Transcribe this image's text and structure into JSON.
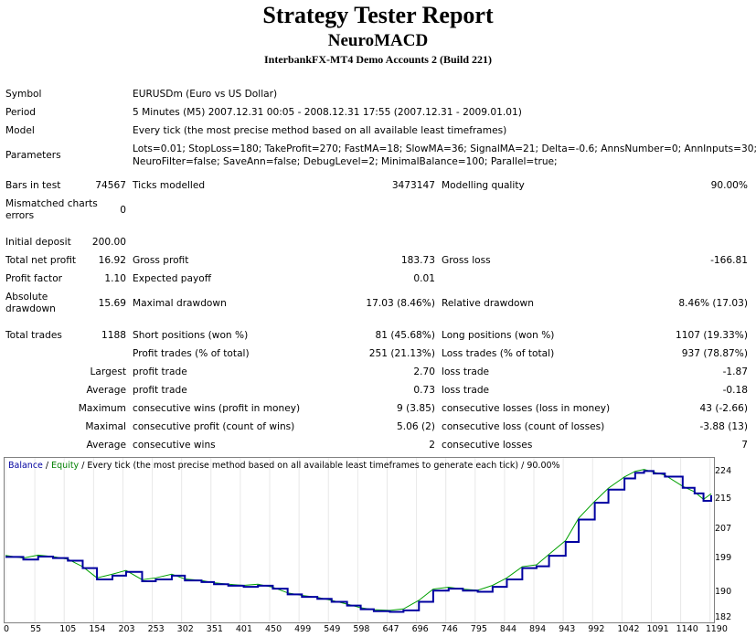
{
  "header": {
    "title": "Strategy Tester Report",
    "subtitle": "NeuroMACD",
    "server": "InterbankFX-MT4 Demo Accounts 2 (Build 221)"
  },
  "info": {
    "symbol_label": "Symbol",
    "symbol_value": "EURUSDm (Euro vs US Dollar)",
    "period_label": "Period",
    "period_value": "5 Minutes (M5) 2007.12.31 00:05 - 2008.12.31 17:55 (2007.12.31 - 2009.01.01)",
    "model_label": "Model",
    "model_value": "Every tick (the most precise method based on all available least timeframes)",
    "parameters_label": "Parameters",
    "parameters_line1": "Lots=0.01; StopLoss=180; TakeProfit=270; FastMA=18; SlowMA=36; SignalMA=21; Delta=-0.6; AnnsNumber=0; AnnInputs=30;",
    "parameters_line2": "NeuroFilter=false; SaveAnn=false; DebugLevel=2; MinimalBalance=100; Parallel=true;"
  },
  "stats": {
    "bars_label": "Bars in test",
    "bars_value": "74567",
    "ticks_label": "Ticks modelled",
    "ticks_value": "3473147",
    "quality_label": "Modelling quality",
    "quality_value": "90.00%",
    "mismatch_label1": "Mismatched charts",
    "mismatch_label2": "errors",
    "mismatch_value": "0",
    "deposit_label": "Initial deposit",
    "deposit_value": "200.00",
    "netprofit_label": "Total net profit",
    "netprofit_value": "16.92",
    "grossprofit_label": "Gross profit",
    "grossprofit_value": "183.73",
    "grossloss_label": "Gross loss",
    "grossloss_value": "-166.81",
    "pf_label": "Profit factor",
    "pf_value": "1.10",
    "payoff_label": "Expected payoff",
    "payoff_value": "0.01",
    "absdd_label1": "Absolute",
    "absdd_label2": "drawdown",
    "absdd_value": "15.69",
    "maxdd_label": "Maximal drawdown",
    "maxdd_value": "17.03 (8.46%)",
    "reldd_label": "Relative drawdown",
    "reldd_value": "8.46% (17.03)",
    "trades_label": "Total trades",
    "trades_value": "1188",
    "short_label": "Short positions (won %)",
    "short_value": "81 (45.68%)",
    "long_label": "Long positions (won %)",
    "long_value": "1107 (19.33%)",
    "ptrades_label": "Profit trades (% of total)",
    "ptrades_value": "251 (21.13%)",
    "ltrades_label": "Loss trades (% of total)",
    "ltrades_value": "937 (78.87%)",
    "largest_label": "Largest",
    "largest_profit_label": "profit trade",
    "largest_profit_value": "2.70",
    "largest_loss_label": "loss trade",
    "largest_loss_value": "-1.87",
    "average_label": "Average",
    "average_profit_label": "profit trade",
    "average_profit_value": "0.73",
    "average_loss_label": "loss trade",
    "average_loss_value": "-0.18",
    "maximum_label": "Maximum",
    "max_wins_label": "consecutive wins (profit in money)",
    "max_wins_value": "9 (3.85)",
    "max_losses_label": "consecutive losses (loss in money)",
    "max_losses_value": "43 (-2.66)",
    "maximal_label": "Maximal",
    "maximal_profit_label": "consecutive profit (count of wins)",
    "maximal_profit_value": "5.06 (2)",
    "maximal_loss_label": "consecutive loss (count of losses)",
    "maximal_loss_value": "-3.88 (13)",
    "average2_label": "Average",
    "avg_wins_label": "consecutive wins",
    "avg_wins_value": "2",
    "avg_losses_label": "consecutive losses",
    "avg_losses_value": "7"
  },
  "chart_legend": {
    "balance": "Balance",
    "sep": " / ",
    "equity": "Equity",
    "rest": " / Every tick (the most precise method based on all available least timeframes to generate each tick) / 90.00%"
  },
  "chart_data": {
    "type": "line",
    "xlim": [
      0,
      1188
    ],
    "ylim": [
      182,
      226
    ],
    "y_ticks": [
      "224",
      "215",
      "207",
      "199",
      "190",
      "182"
    ],
    "x_ticks": [
      "0",
      "55",
      "105",
      "154",
      "203",
      "253",
      "302",
      "351",
      "401",
      "450",
      "499",
      "549",
      "598",
      "647",
      "696",
      "746",
      "795",
      "844",
      "894",
      "943",
      "992",
      "1042",
      "1091",
      "1140",
      "1190"
    ],
    "colors": {
      "balance": "#0000a0",
      "equity": "#00a000"
    },
    "series": [
      {
        "name": "Balance",
        "x": [
          0,
          30,
          55,
          80,
          105,
          130,
          154,
          180,
          203,
          230,
          253,
          280,
          302,
          330,
          351,
          375,
          401,
          425,
          450,
          475,
          499,
          525,
          549,
          575,
          598,
          620,
          647,
          670,
          696,
          720,
          746,
          770,
          795,
          820,
          844,
          870,
          894,
          915,
          943,
          965,
          992,
          1015,
          1042,
          1060,
          1075,
          1091,
          1110,
          1140,
          1160,
          1175,
          1188
        ],
        "y": [
          199.5,
          198.8,
          199.6,
          199.2,
          198.5,
          196.5,
          193.5,
          194.5,
          195.5,
          193.0,
          193.5,
          194.5,
          193.2,
          192.8,
          192.2,
          191.8,
          191.5,
          191.8,
          191.0,
          189.5,
          188.8,
          188.3,
          187.5,
          186.5,
          185.5,
          185.0,
          184.8,
          185.2,
          187.5,
          190.5,
          191.0,
          190.5,
          190.2,
          191.5,
          193.5,
          196.5,
          197.0,
          199.8,
          203.5,
          209.5,
          214.0,
          217.5,
          220.5,
          222.0,
          222.5,
          221.8,
          221.0,
          218.0,
          216.5,
          214.5,
          216.0
        ]
      }
    ]
  }
}
